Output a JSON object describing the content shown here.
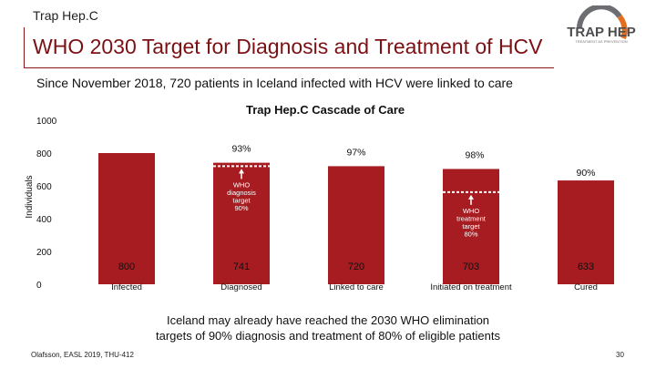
{
  "header": {
    "label": "Trap Hep.C"
  },
  "slide": {
    "title": "WHO 2030 Target for Diagnosis and Treatment of HCV",
    "subtitle": "Since November 2018, 720 patients in Iceland infected with HCV were linked to care",
    "conclusion_line1": "Iceland may already have reached the 2030 WHO elimination",
    "conclusion_line2": "targets of 90% diagnosis and treatment of 80% of eligible patients",
    "reference": "Olafsson, EASL 2019, THU-412",
    "page_number": "30"
  },
  "logo": {
    "text": "TRAP HEP",
    "tagline": "TREATMENT AS PREVENTION",
    "color_gray": "#6d6e71",
    "color_orange": "#e36f1e"
  },
  "colors": {
    "bar": "#a61c21",
    "title": "#7b1114",
    "accent_rule": "#8b1a1a"
  },
  "chart_data": {
    "type": "bar",
    "title": "Trap Hep.C Cascade of Care",
    "ylabel": "Individuals",
    "xlabel": "",
    "ylim": [
      0,
      1000
    ],
    "yticks": [
      0,
      200,
      400,
      600,
      800,
      1000
    ],
    "categories": [
      "Infected",
      "Diagnosed",
      "Linked to care",
      "Initiated on treatment",
      "Cured"
    ],
    "values": [
      800,
      741,
      720,
      703,
      633
    ],
    "value_labels": [
      "800",
      "741",
      "720",
      "703",
      "633"
    ],
    "percent_labels": [
      "",
      "93%",
      "97%",
      "98%",
      "90%"
    ],
    "grid": false,
    "annotations": [
      {
        "category_index": 1,
        "level": 720,
        "text_lines": [
          "WHO",
          "diagnosis",
          "target",
          "90%"
        ]
      },
      {
        "category_index": 3,
        "level": 562,
        "text_lines": [
          "WHO",
          "treatment",
          "target",
          "80%"
        ]
      }
    ]
  }
}
